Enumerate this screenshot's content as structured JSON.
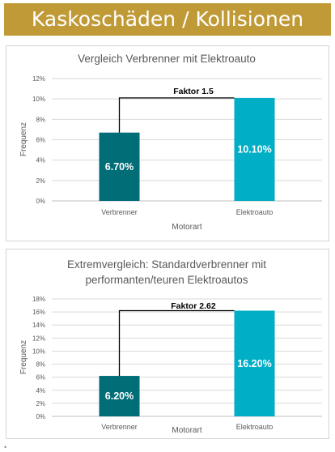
{
  "header": {
    "title": "Kaskoschäden / Kollisionen"
  },
  "chart_data": [
    {
      "type": "bar",
      "title_lines": [
        "Vergleich Verbrenner mit Elektroauto"
      ],
      "categories": [
        "Verbrenner",
        "Elektroauto"
      ],
      "values": [
        6.7,
        10.1
      ],
      "value_labels": [
        "6.70%",
        "10.10%"
      ],
      "bar_colors": [
        "#006d77",
        "#00aec6"
      ],
      "xlabel": "Motorart",
      "ylabel": "Frequenz",
      "ylim": [
        0,
        12
      ],
      "yticks": [
        0,
        2,
        4,
        6,
        8,
        10,
        12
      ],
      "ytick_labels": [
        "0%",
        "2%",
        "4%",
        "6%",
        "8%",
        "10%",
        "12%"
      ],
      "grid": true,
      "annotation": "Faktor 1.5"
    },
    {
      "type": "bar",
      "title_lines": [
        "Extremvergleich: Standardverbrenner mit",
        "performanten/teuren Elektroautos"
      ],
      "categories": [
        "Verbrenner",
        "Elektroauto"
      ],
      "values": [
        6.2,
        16.2
      ],
      "value_labels": [
        "6.20%",
        "16.20%"
      ],
      "bar_colors": [
        "#006d77",
        "#00aec6"
      ],
      "xlabel": "Motorart",
      "ylabel": "Frequenz",
      "ylim": [
        0,
        18
      ],
      "yticks": [
        0,
        2,
        4,
        6,
        8,
        10,
        12,
        14,
        16,
        18
      ],
      "ytick_labels": [
        "0%",
        "2%",
        "4%",
        "6%",
        "8%",
        "10%",
        "12%",
        "14%",
        "16%",
        "18%"
      ],
      "grid": true,
      "annotation": "Faktor 2.62"
    }
  ]
}
